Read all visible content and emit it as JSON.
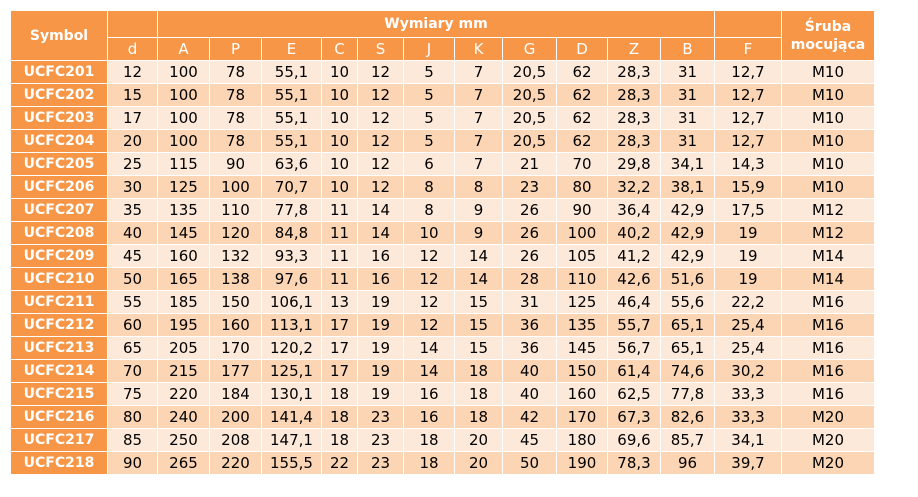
{
  "header": {
    "symbol": "Symbol",
    "dimensions": "Wymiary mm",
    "screw_line1": "Śruba",
    "screw_line2": "mocująca"
  },
  "columns": [
    "d",
    "A",
    "P",
    "E",
    "C",
    "S",
    "J",
    "K",
    "G",
    "D",
    "Z",
    "B",
    "F"
  ],
  "rows": [
    {
      "symbol": "UCFC201",
      "values": [
        "12",
        "100",
        "78",
        "55,1",
        "10",
        "12",
        "5",
        "7",
        "20,5",
        "62",
        "28,3",
        "31",
        "12,7"
      ],
      "screw": "M10"
    },
    {
      "symbol": "UCFC202",
      "values": [
        "15",
        "100",
        "78",
        "55,1",
        "10",
        "12",
        "5",
        "7",
        "20,5",
        "62",
        "28,3",
        "31",
        "12,7"
      ],
      "screw": "M10"
    },
    {
      "symbol": "UCFC203",
      "values": [
        "17",
        "100",
        "78",
        "55,1",
        "10",
        "12",
        "5",
        "7",
        "20,5",
        "62",
        "28,3",
        "31",
        "12,7"
      ],
      "screw": "M10"
    },
    {
      "symbol": "UCFC204",
      "values": [
        "20",
        "100",
        "78",
        "55,1",
        "10",
        "12",
        "5",
        "7",
        "20,5",
        "62",
        "28,3",
        "31",
        "12,7"
      ],
      "screw": "M10"
    },
    {
      "symbol": "UCFC205",
      "values": [
        "25",
        "115",
        "90",
        "63,6",
        "10",
        "12",
        "6",
        "7",
        "21",
        "70",
        "29,8",
        "34,1",
        "14,3"
      ],
      "screw": "M10"
    },
    {
      "symbol": "UCFC206",
      "values": [
        "30",
        "125",
        "100",
        "70,7",
        "10",
        "12",
        "8",
        "8",
        "23",
        "80",
        "32,2",
        "38,1",
        "15,9"
      ],
      "screw": "M10"
    },
    {
      "symbol": "UCFC207",
      "values": [
        "35",
        "135",
        "110",
        "77,8",
        "11",
        "14",
        "8",
        "9",
        "26",
        "90",
        "36,4",
        "42,9",
        "17,5"
      ],
      "screw": "M12"
    },
    {
      "symbol": "UCFC208",
      "values": [
        "40",
        "145",
        "120",
        "84,8",
        "11",
        "14",
        "10",
        "9",
        "26",
        "100",
        "40,2",
        "42,9",
        "19"
      ],
      "screw": "M12"
    },
    {
      "symbol": "UCFC209",
      "values": [
        "45",
        "160",
        "132",
        "93,3",
        "11",
        "16",
        "12",
        "14",
        "26",
        "105",
        "41,2",
        "42,9",
        "19"
      ],
      "screw": "M14"
    },
    {
      "symbol": "UCFC210",
      "values": [
        "50",
        "165",
        "138",
        "97,6",
        "11",
        "16",
        "12",
        "14",
        "28",
        "110",
        "42,6",
        "51,6",
        "19"
      ],
      "screw": "M14"
    },
    {
      "symbol": "UCFC211",
      "values": [
        "55",
        "185",
        "150",
        "106,1",
        "13",
        "19",
        "12",
        "15",
        "31",
        "125",
        "46,4",
        "55,6",
        "22,2"
      ],
      "screw": "M16"
    },
    {
      "symbol": "UCFC212",
      "values": [
        "60",
        "195",
        "160",
        "113,1",
        "17",
        "19",
        "12",
        "15",
        "36",
        "135",
        "55,7",
        "65,1",
        "25,4"
      ],
      "screw": "M16"
    },
    {
      "symbol": "UCFC213",
      "values": [
        "65",
        "205",
        "170",
        "120,2",
        "17",
        "19",
        "14",
        "15",
        "36",
        "145",
        "56,7",
        "65,1",
        "25,4"
      ],
      "screw": "M16"
    },
    {
      "symbol": "UCFC214",
      "values": [
        "70",
        "215",
        "177",
        "125,1",
        "17",
        "19",
        "14",
        "18",
        "40",
        "150",
        "61,4",
        "74,6",
        "30,2"
      ],
      "screw": "M16"
    },
    {
      "symbol": "UCFC215",
      "values": [
        "75",
        "220",
        "184",
        "130,1",
        "18",
        "19",
        "16",
        "18",
        "40",
        "160",
        "62,5",
        "77,8",
        "33,3"
      ],
      "screw": "M16"
    },
    {
      "symbol": "UCFC216",
      "values": [
        "80",
        "240",
        "200",
        "141,4",
        "18",
        "23",
        "16",
        "18",
        "42",
        "170",
        "67,3",
        "82,6",
        "33,3"
      ],
      "screw": "M20"
    },
    {
      "symbol": "UCFC217",
      "values": [
        "85",
        "250",
        "208",
        "147,1",
        "18",
        "23",
        "18",
        "20",
        "45",
        "180",
        "69,6",
        "85,7",
        "34,1"
      ],
      "screw": "M20"
    },
    {
      "symbol": "UCFC218",
      "values": [
        "90",
        "265",
        "220",
        "155,5",
        "22",
        "23",
        "18",
        "20",
        "50",
        "190",
        "78,3",
        "96",
        "39,7"
      ],
      "screw": "M20"
    }
  ]
}
